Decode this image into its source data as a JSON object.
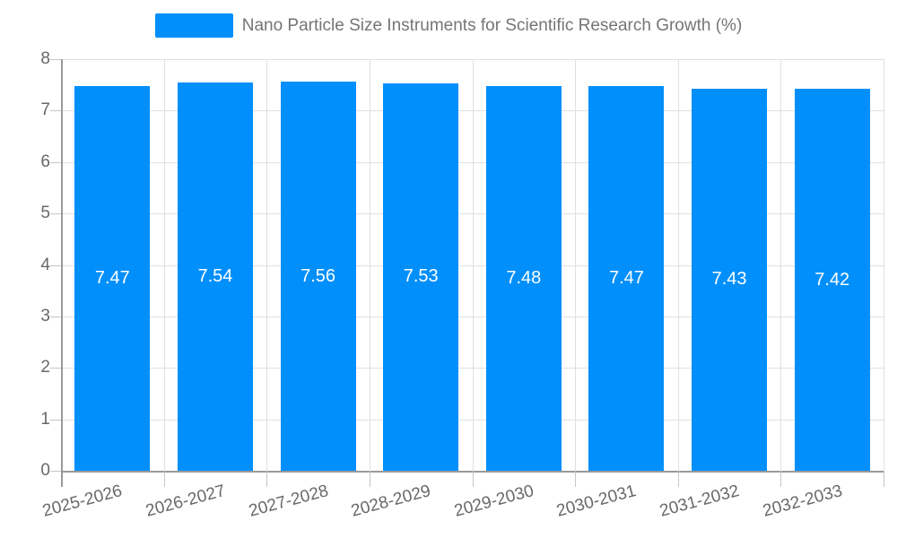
{
  "chart_data": {
    "type": "bar",
    "legend": "Nano Particle Size Instruments for Scientific Research Growth (%)",
    "categories": [
      "2025-2026",
      "2026-2027",
      "2027-2028",
      "2028-2029",
      "2029-2030",
      "2030-2031",
      "2031-2032",
      "2032-2033"
    ],
    "values": [
      7.47,
      7.54,
      7.56,
      7.53,
      7.48,
      7.47,
      7.43,
      7.42
    ],
    "value_labels": [
      "7.47",
      "7.54",
      "7.56",
      "7.53",
      "7.48",
      "7.47",
      "7.43",
      "7.42"
    ],
    "ylabel": "",
    "xlabel": "",
    "ylim": [
      0,
      8
    ],
    "y_ticks": [
      0,
      1,
      2,
      3,
      4,
      5,
      6,
      7,
      8
    ],
    "grid": true,
    "legend_position": "top",
    "x_label_rotation_deg": -15,
    "colors": {
      "bar": "#008FFB",
      "grid_line": "#e0e0e0",
      "axis_line": "#9a9a9a",
      "tick_mark": "#c6c6c6",
      "axis_label_text": "#686868",
      "legend_text": "#757575",
      "value_label_text": "#ffffff",
      "background": "#ffffff"
    }
  }
}
